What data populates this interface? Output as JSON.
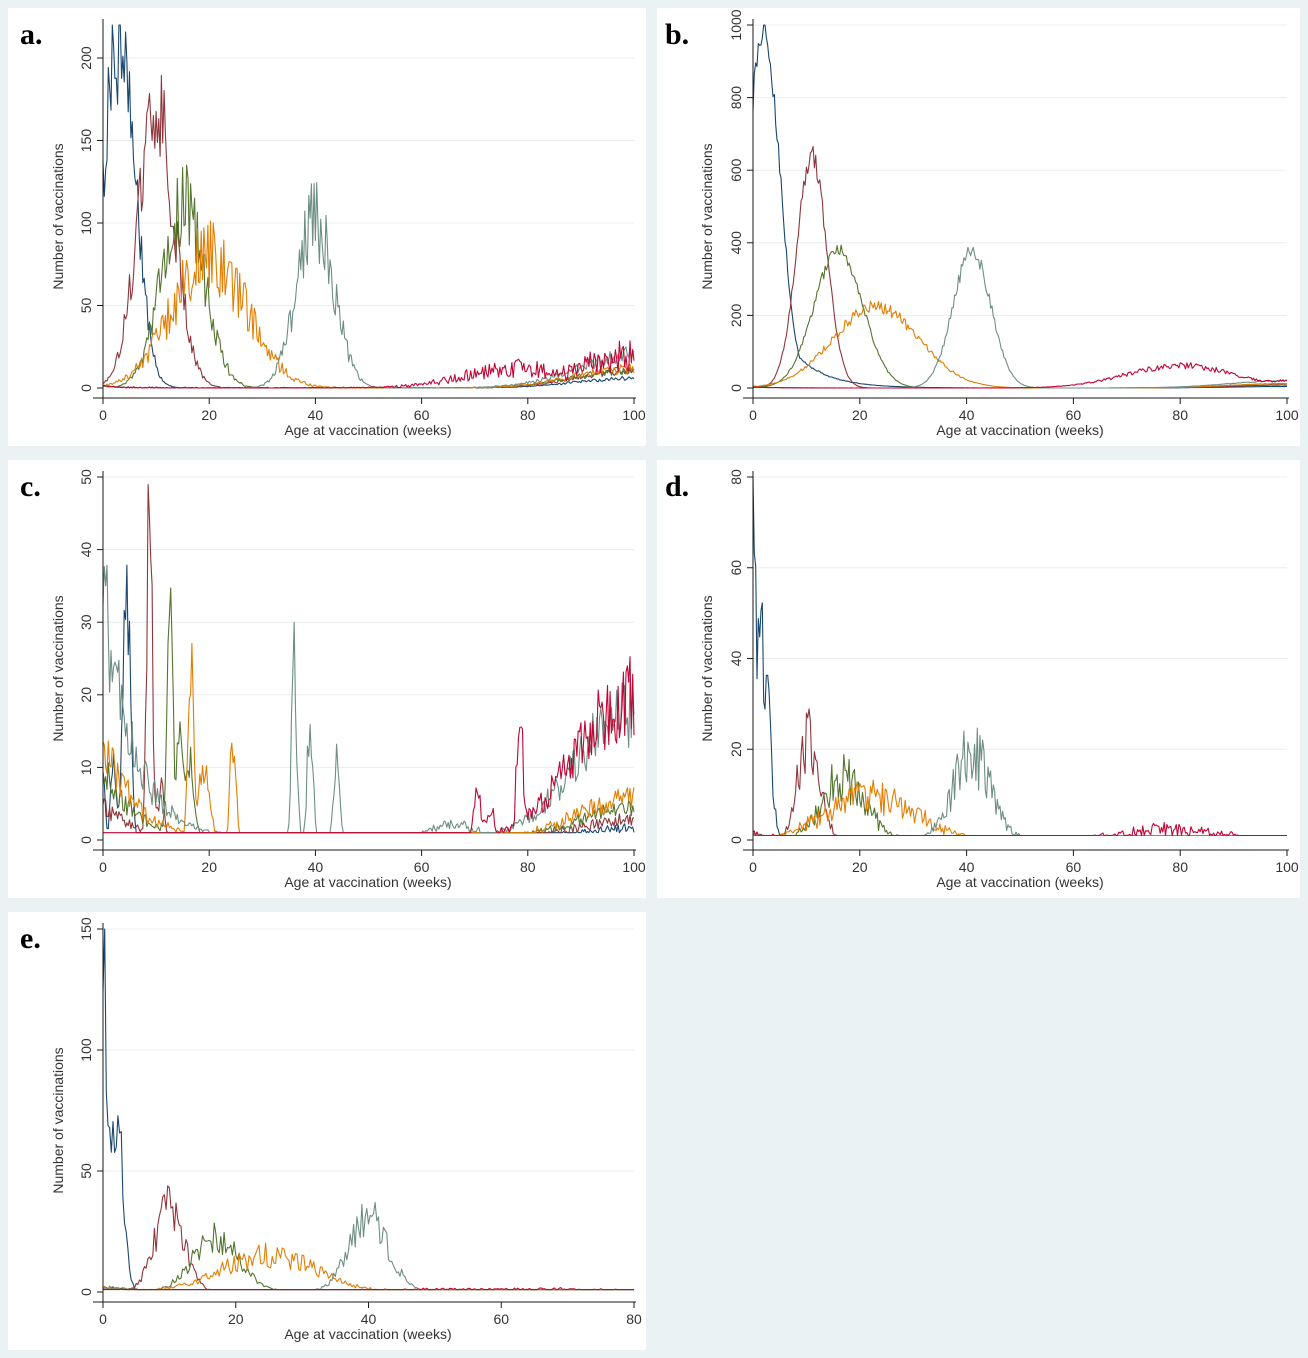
{
  "colors": {
    "background": "#eaf2f3",
    "grid": "#e8eef0",
    "axis": "#1a1a1a",
    "dose1": "#1a476f",
    "dose2": "#90353b",
    "dose3": "#55752f",
    "dose4": "#e37e00",
    "dose5": "#6e8e84",
    "dose6": "#c10534"
  },
  "chart_data": [
    {
      "panel": "a.",
      "type": "line",
      "xlabel": "Age at vaccination (weeks)",
      "ylabel": "Number of vaccinations",
      "xlim": [
        0,
        100
      ],
      "ylim": [
        0,
        220
      ],
      "xticks": [
        0,
        20,
        40,
        60,
        80,
        100
      ],
      "yticks": [
        0,
        50,
        100,
        150,
        200
      ],
      "grid": true,
      "legend": "none",
      "series": [
        {
          "color": "dose1",
          "peaks": [
            [
              3,
              215,
              3
            ]
          ],
          "start": 1,
          "end": 30,
          "noise": 0.2
        },
        {
          "color": "dose2",
          "peaks": [
            [
              10,
              165,
              3.5
            ]
          ],
          "start": 1,
          "end": 50,
          "noise": 0.2
        },
        {
          "color": "dose3",
          "peaks": [
            [
              15,
              112,
              4
            ]
          ],
          "start": 1,
          "end": 55,
          "noise": 0.25
        },
        {
          "color": "dose4",
          "peaks": [
            [
              20,
              80,
              7
            ]
          ],
          "start": 1,
          "end": 60,
          "noise": 0.3
        },
        {
          "color": "dose5",
          "peaks": [
            [
              40,
              102,
              3.5
            ]
          ],
          "start": 1,
          "end": 100,
          "noise": 0.25
        },
        {
          "color": "dose6",
          "peaks": [
            [
              78,
              12,
              10
            ]
          ],
          "start": 1,
          "end": 100,
          "noise": 0.5
        }
      ]
    },
    {
      "panel": "b.",
      "type": "line",
      "xlabel": "Age at vaccination (weeks)",
      "ylabel": "Number of vaccinations",
      "xlim": [
        0,
        100
      ],
      "ylim": [
        0,
        1000
      ],
      "xticks": [
        0,
        20,
        40,
        60,
        80,
        100
      ],
      "yticks": [
        0,
        200,
        400,
        600,
        800,
        1000
      ],
      "grid": true,
      "legend": "none",
      "series": [
        {
          "color": "dose1",
          "peaks": [
            [
              2,
              1000,
              3
            ]
          ],
          "start": 350,
          "end": 20,
          "noise": 0.05
        },
        {
          "color": "dose2",
          "peaks": [
            [
              11,
              640,
              2.8
            ]
          ],
          "start": 5,
          "end": 40,
          "noise": 0.05
        },
        {
          "color": "dose3",
          "peaks": [
            [
              16,
              380,
              4.5
            ]
          ],
          "start": 2,
          "end": 60,
          "noise": 0.05
        },
        {
          "color": "dose4",
          "peaks": [
            [
              23,
              225,
              8
            ]
          ],
          "start": 2,
          "end": 60,
          "noise": 0.08
        },
        {
          "color": "dose5",
          "peaks": [
            [
              41,
              380,
              3.5
            ]
          ],
          "start": 2,
          "end": 100,
          "noise": 0.06
        },
        {
          "color": "dose6",
          "peaks": [
            [
              80,
              62,
              10
            ]
          ],
          "start": 2,
          "end": 100,
          "noise": 0.15
        }
      ]
    },
    {
      "panel": "c.",
      "type": "line",
      "xlabel": "Age at vaccination (weeks)",
      "ylabel": "Number of vaccinations",
      "xlim": [
        0,
        100
      ],
      "ylim": [
        0,
        50
      ],
      "xticks": [
        0,
        20,
        40,
        60,
        80,
        100
      ],
      "yticks": [
        0,
        10,
        20,
        30,
        40,
        50
      ],
      "grid": true,
      "legend": "none",
      "series": [
        {
          "color": "dose1",
          "peaks": [
            [
              0,
              10,
              0.4
            ],
            [
              2,
              10,
              0.5
            ],
            [
              4.5,
              33,
              0.7
            ]
          ],
          "start": 0,
          "end": 8,
          "noise": 0.3,
          "base": 1
        },
        {
          "color": "dose2",
          "peaks": [
            [
              8.8,
              50,
              0.5
            ],
            [
              11,
              9,
              0.5
            ]
          ],
          "start": 5,
          "end": 14,
          "noise": 0.3,
          "base": 1
        },
        {
          "color": "dose3",
          "peaks": [
            [
              12.6,
              33,
              0.5
            ],
            [
              14.5,
              15,
              0.6
            ],
            [
              16.5,
              10,
              0.8
            ]
          ],
          "start": 10,
          "end": 22,
          "noise": 0.3,
          "base": 1
        },
        {
          "color": "dose4",
          "peaks": [
            [
              16.5,
              24,
              0.5
            ],
            [
              19,
              10,
              1
            ],
            [
              24.5,
              15,
              0.5
            ]
          ],
          "start": 14,
          "end": 29,
          "noise": 0.3,
          "base": 1
        },
        {
          "color": "dose5",
          "peaks": [
            [
              36,
              24,
              0.5
            ],
            [
              39,
              18,
              0.5
            ],
            [
              44,
              13,
              0.5
            ],
            [
              66,
              2,
              5
            ]
          ],
          "start": 33,
          "end": 90,
          "noise": 0.3,
          "base": 1
        },
        {
          "color": "dose6",
          "peaks": [
            [
              70.5,
              8,
              0.6
            ],
            [
              73,
              4,
              0.8
            ],
            [
              78.5,
              17,
              0.6
            ],
            [
              91,
              4,
              0.4
            ]
          ],
          "start": 0,
          "end": 99,
          "noise": 0.3,
          "base": 1
        }
      ]
    },
    {
      "panel": "d.",
      "type": "line",
      "xlabel": "Age at vaccination (weeks)",
      "ylabel": "Number of vaccinations",
      "xlim": [
        0,
        100
      ],
      "ylim": [
        0,
        80
      ],
      "xticks": [
        0,
        20,
        40,
        60,
        80,
        100
      ],
      "yticks": [
        0,
        20,
        40,
        60,
        80
      ],
      "grid": true,
      "legend": "none",
      "series": [
        {
          "color": "dose1",
          "peaks": [
            [
              0,
              72,
              0.4
            ],
            [
              1.8,
              44,
              1.2
            ]
          ],
          "start": 1,
          "end": 1,
          "noise": 0.3,
          "base": 1
        },
        {
          "color": "dose2",
          "peaks": [
            [
              10.5,
              24,
              2
            ]
          ],
          "start": 1,
          "end": 1,
          "noise": 0.35,
          "base": 1
        },
        {
          "color": "dose3",
          "peaks": [
            [
              17,
              14,
              4
            ]
          ],
          "start": 1,
          "end": 1,
          "noise": 0.4,
          "base": 1
        },
        {
          "color": "dose4",
          "peaks": [
            [
              22,
              10,
              8
            ]
          ],
          "start": 1,
          "end": 1,
          "noise": 0.4,
          "base": 1
        },
        {
          "color": "dose5",
          "peaks": [
            [
              41,
              19,
              3.5
            ]
          ],
          "start": 1,
          "end": 1,
          "noise": 0.4,
          "base": 1
        },
        {
          "color": "dose6",
          "peaks": [
            [
              78,
              2.5,
              8
            ]
          ],
          "start": 1,
          "end": 1,
          "noise": 0.6,
          "base": 1
        }
      ]
    },
    {
      "panel": "e.",
      "type": "line",
      "xlabel": "Age at vaccination (weeks)",
      "ylabel": "Number of vaccinations",
      "xlim": [
        0,
        80
      ],
      "ylim": [
        0,
        150
      ],
      "xticks": [
        0,
        20,
        40,
        60,
        80
      ],
      "yticks": [
        0,
        50,
        100,
        150
      ],
      "grid": true,
      "legend": "none",
      "series": [
        {
          "color": "dose1",
          "peaks": [
            [
              0,
              138,
              0.5
            ],
            [
              2,
              72,
              1
            ]
          ],
          "start": 2,
          "end": 1,
          "noise": 0.25,
          "base": 1
        },
        {
          "color": "dose2",
          "peaks": [
            [
              10,
              35,
              2.2
            ]
          ],
          "start": 2,
          "end": 1,
          "noise": 0.3,
          "base": 1
        },
        {
          "color": "dose3",
          "peaks": [
            [
              17,
              22,
              3.5
            ]
          ],
          "start": 2,
          "end": 1,
          "noise": 0.3,
          "base": 1
        },
        {
          "color": "dose4",
          "peaks": [
            [
              25,
              15,
              7
            ]
          ],
          "start": 2,
          "end": 1,
          "noise": 0.35,
          "base": 1
        },
        {
          "color": "dose5",
          "peaks": [
            [
              40,
              30,
              3
            ]
          ],
          "start": 2,
          "end": 1,
          "noise": 0.3,
          "base": 1
        },
        {
          "color": "dose6",
          "peaks": [
            [
              60,
              1,
              20
            ]
          ],
          "start": 1,
          "end": 1,
          "noise": 0.5,
          "base": 1
        }
      ]
    }
  ]
}
